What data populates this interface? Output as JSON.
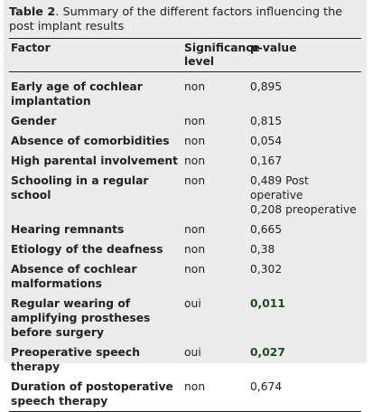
{
  "caption": {
    "label": "Table 2",
    "text": ". Summary of the different factors influencing the post implant results"
  },
  "table": {
    "header": [
      "Factor",
      "Significance level",
      "p-value"
    ],
    "rows": [
      {
        "factor": "Early age of cochlear implantation",
        "significance": "non",
        "p_value": [
          "0,895"
        ]
      },
      {
        "factor": "Gender",
        "significance": "non",
        "p_value": [
          "0,815"
        ]
      },
      {
        "factor": "Absence of comorbidities",
        "significance": "non",
        "p_value": [
          "0,054"
        ]
      },
      {
        "factor": "High parental involvement",
        "significance": "non",
        "p_value": [
          "0,167"
        ]
      },
      {
        "factor": "Schooling in a regular school",
        "significance": "non",
        "p_value": [
          "0,489 Post operative",
          "0,208 preoperative"
        ]
      },
      {
        "factor": "Hearing remnants",
        "significance": "non",
        "p_value": [
          "0,665"
        ]
      },
      {
        "factor": "Etiology of the deafness",
        "significance": "non",
        "p_value": [
          "0,38"
        ]
      },
      {
        "factor": "Absence of cochlear malformations",
        "significance": "non",
        "p_value": [
          "0,302"
        ]
      },
      {
        "factor": "Regular wearing of amplifying prostheses before surgery",
        "significance": "oui",
        "p_value": [
          "0,011"
        ],
        "significant": true
      },
      {
        "factor": "Preoperative speech therapy",
        "significance": "oui",
        "p_value": [
          "0,027"
        ],
        "significant": true
      },
      {
        "factor": "Duration of postoperative speech therapy",
        "significance": "non",
        "p_value": [
          "0,674"
        ]
      }
    ]
  }
}
